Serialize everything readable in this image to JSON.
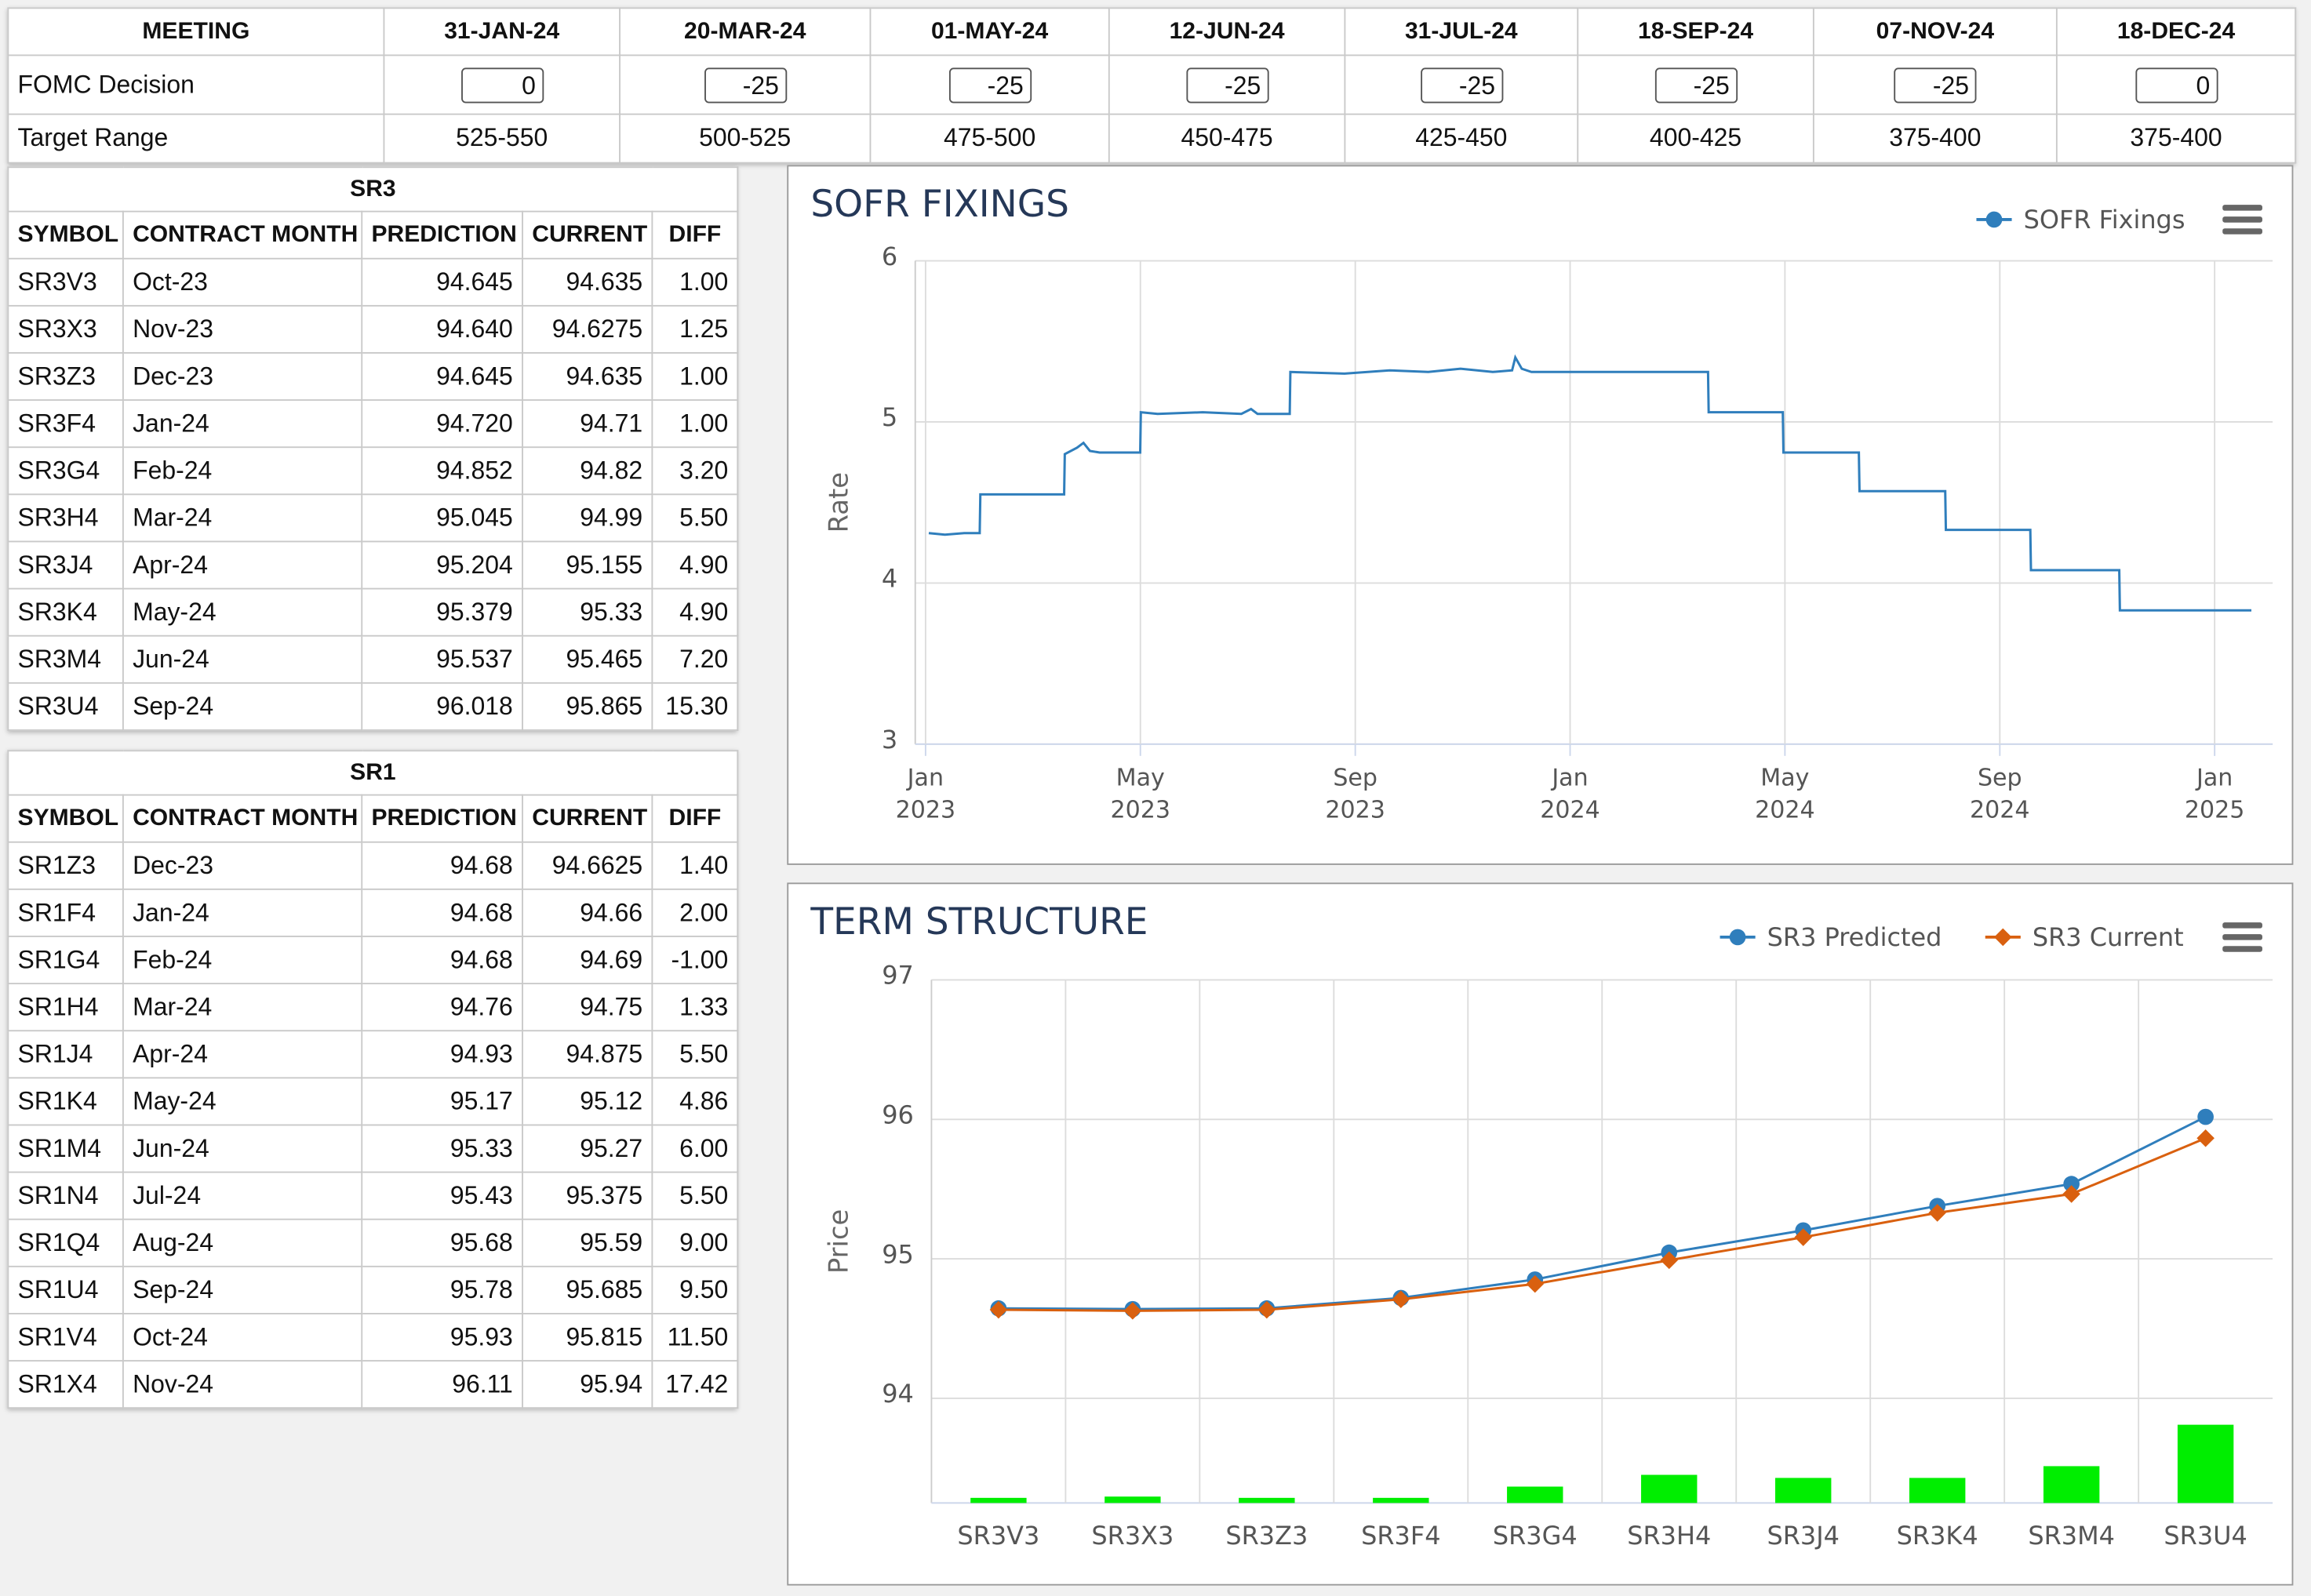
{
  "meetings": {
    "header": "MEETING",
    "dates": [
      "31-JAN-24",
      "20-MAR-24",
      "01-MAY-24",
      "12-JUN-24",
      "31-JUL-24",
      "18-SEP-24",
      "07-NOV-24",
      "18-DEC-24"
    ],
    "rows": [
      {
        "label": "FOMC Decision",
        "values": [
          "0",
          "-25",
          "-25",
          "-25",
          "-25",
          "-25",
          "-25",
          "0"
        ]
      },
      {
        "label": "Target Range",
        "values": [
          "525-550",
          "500-525",
          "475-500",
          "450-475",
          "425-450",
          "400-425",
          "375-400",
          "375-400"
        ]
      }
    ]
  },
  "tables": [
    {
      "title": "SR3",
      "columns": [
        "SYMBOL",
        "CONTRACT MONTH",
        "PREDICTION",
        "CURRENT",
        "DIFF"
      ],
      "rows": [
        [
          "SR3V3",
          "Oct-23",
          "94.645",
          "94.635",
          "1.00"
        ],
        [
          "SR3X3",
          "Nov-23",
          "94.640",
          "94.6275",
          "1.25"
        ],
        [
          "SR3Z3",
          "Dec-23",
          "94.645",
          "94.635",
          "1.00"
        ],
        [
          "SR3F4",
          "Jan-24",
          "94.720",
          "94.71",
          "1.00"
        ],
        [
          "SR3G4",
          "Feb-24",
          "94.852",
          "94.82",
          "3.20"
        ],
        [
          "SR3H4",
          "Mar-24",
          "95.045",
          "94.99",
          "5.50"
        ],
        [
          "SR3J4",
          "Apr-24",
          "95.204",
          "95.155",
          "4.90"
        ],
        [
          "SR3K4",
          "May-24",
          "95.379",
          "95.33",
          "4.90"
        ],
        [
          "SR3M4",
          "Jun-24",
          "95.537",
          "95.465",
          "7.20"
        ],
        [
          "SR3U4",
          "Sep-24",
          "96.018",
          "95.865",
          "15.30"
        ]
      ]
    },
    {
      "title": "SR1",
      "columns": [
        "SYMBOL",
        "CONTRACT MONTH",
        "PREDICTION",
        "CURRENT",
        "DIFF"
      ],
      "rows": [
        [
          "SR1Z3",
          "Dec-23",
          "94.68",
          "94.6625",
          "1.40"
        ],
        [
          "SR1F4",
          "Jan-24",
          "94.68",
          "94.66",
          "2.00"
        ],
        [
          "SR1G4",
          "Feb-24",
          "94.68",
          "94.69",
          "-1.00"
        ],
        [
          "SR1H4",
          "Mar-24",
          "94.76",
          "94.75",
          "1.33"
        ],
        [
          "SR1J4",
          "Apr-24",
          "94.93",
          "94.875",
          "5.50"
        ],
        [
          "SR1K4",
          "May-24",
          "95.17",
          "95.12",
          "4.86"
        ],
        [
          "SR1M4",
          "Jun-24",
          "95.33",
          "95.27",
          "6.00"
        ],
        [
          "SR1N4",
          "Jul-24",
          "95.43",
          "95.375",
          "5.50"
        ],
        [
          "SR1Q4",
          "Aug-24",
          "95.68",
          "95.59",
          "9.00"
        ],
        [
          "SR1U4",
          "Sep-24",
          "95.78",
          "95.685",
          "9.50"
        ],
        [
          "SR1V4",
          "Oct-24",
          "95.93",
          "95.815",
          "11.50"
        ],
        [
          "SR1X4",
          "Nov-24",
          "96.11",
          "95.94",
          "17.42"
        ]
      ]
    }
  ],
  "chart_data": [
    {
      "type": "line",
      "title": "SOFR FIXINGS",
      "y_label": "Rate",
      "x": [
        2023.005,
        2023.03,
        2023.06,
        2023.084,
        2023.085,
        2023.15,
        2023.215,
        2023.216,
        2023.235,
        2023.245,
        2023.255,
        2023.27,
        2023.333,
        2023.334,
        2023.36,
        2023.43,
        2023.49,
        2023.505,
        2023.515,
        2023.565,
        2023.566,
        2023.65,
        2023.72,
        2023.78,
        2023.83,
        2023.88,
        2023.91,
        2023.915,
        2023.925,
        2023.94,
        2023.96,
        2024.05,
        2024.214,
        2024.215,
        2024.33,
        2024.331,
        2024.448,
        2024.449,
        2024.582,
        2024.583,
        2024.714,
        2024.715,
        2024.852,
        2024.853,
        2025.057
      ],
      "series": [
        {
          "name": "SOFR Fixings",
          "color": "#2f7ebc",
          "marker": "circle",
          "values": [
            4.31,
            4.3,
            4.31,
            4.31,
            4.55,
            4.55,
            4.55,
            4.8,
            4.84,
            4.87,
            4.82,
            4.81,
            4.81,
            5.06,
            5.05,
            5.06,
            5.05,
            5.08,
            5.05,
            5.05,
            5.31,
            5.3,
            5.32,
            5.31,
            5.33,
            5.31,
            5.32,
            5.4,
            5.33,
            5.31,
            5.31,
            5.31,
            5.31,
            5.06,
            5.06,
            4.81,
            4.81,
            4.57,
            4.57,
            4.33,
            4.33,
            4.08,
            4.08,
            3.83,
            3.83
          ]
        }
      ],
      "xlim": [
        2022.984,
        2025.09
      ],
      "xticks": [
        {
          "value": 2023,
          "label": "Jan 2023"
        },
        {
          "value": 2023.3333,
          "label": "May 2023"
        },
        {
          "value": 2023.6667,
          "label": "Sep 2023"
        },
        {
          "value": 2024,
          "label": "Jan 2024"
        },
        {
          "value": 2024.3333,
          "label": "May 2024"
        },
        {
          "value": 2024.6667,
          "label": "Sep 2024"
        },
        {
          "value": 2025,
          "label": "Jan 2025"
        }
      ],
      "ylim": [
        3,
        6
      ],
      "yticks": [
        3,
        4,
        5,
        6
      ],
      "grid": true
    },
    {
      "type": "line",
      "title": "TERM STRUCTURE",
      "y_label": "Price",
      "categories": [
        "SR3V3",
        "SR3X3",
        "SR3Z3",
        "SR3F4",
        "SR3G4",
        "SR3H4",
        "SR3J4",
        "SR3K4",
        "SR3M4",
        "SR3U4"
      ],
      "series": [
        {
          "name": "SR3 Predicted",
          "color": "#2f7ebc",
          "marker": "circle",
          "values": [
            94.645,
            94.64,
            94.645,
            94.72,
            94.852,
            95.045,
            95.204,
            95.379,
            95.537,
            96.018
          ]
        },
        {
          "name": "SR3 Current",
          "color": "#d9600f",
          "marker": "diamond",
          "values": [
            94.635,
            94.6275,
            94.635,
            94.71,
            94.82,
            94.99,
            95.155,
            95.33,
            95.465,
            95.865
          ]
        }
      ],
      "bars": {
        "color": "#00ee00",
        "values": [
          1,
          1.25,
          1,
          1,
          3.2,
          5.5,
          4.9,
          4.9,
          7.2,
          15.3
        ]
      },
      "ylim": [
        93.25,
        97
      ],
      "yticks": [
        94,
        95,
        96,
        97
      ],
      "grid": true
    }
  ]
}
